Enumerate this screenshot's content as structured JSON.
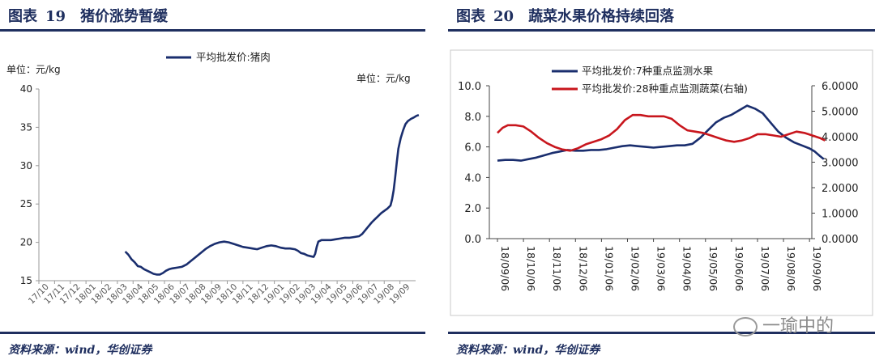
{
  "left": {
    "title_prefix": "图表",
    "title_num": "19",
    "title_text": "猪价涨势暂缓",
    "source": "资料来源：wind，华创证券"
  },
  "right": {
    "title_prefix": "图表",
    "title_num": "20",
    "title_text": "蔬菜水果价格持续回落",
    "source": "资料来源：wind，华创证券"
  },
  "watermark": "一瑜中的",
  "chart_data": [
    {
      "type": "line",
      "legend_position": "top",
      "unit_left": "单位：元/kg",
      "unit_right": "单位：元/kg",
      "ylim": [
        15,
        40
      ],
      "yticks": [
        "15",
        "20",
        "25",
        "30",
        "35",
        "40"
      ],
      "x_tick_labels": [
        "17/10",
        "17/11",
        "17/12",
        "18/01",
        "18/02",
        "18/03",
        "18/04",
        "18/05",
        "18/06",
        "18/07",
        "18/08",
        "18/09",
        "18/10",
        "18/11",
        "18/12",
        "19/01",
        "19/02",
        "19/03",
        "19/04",
        "19/05",
        "19/06",
        "19/07",
        "19/08",
        "19/09"
      ],
      "grid": false,
      "color": "#1a2e6e",
      "series": [
        {
          "name": "平均批发价:猪肉",
          "points": [
            [
              5.0,
              18.8
            ],
            [
              5.2,
              18.4
            ],
            [
              5.4,
              17.8
            ],
            [
              5.6,
              17.4
            ],
            [
              5.8,
              16.9
            ],
            [
              6.0,
              16.8
            ],
            [
              6.2,
              16.5
            ],
            [
              6.4,
              16.3
            ],
            [
              6.6,
              16.1
            ],
            [
              6.8,
              15.9
            ],
            [
              7.0,
              15.8
            ],
            [
              7.2,
              15.8
            ],
            [
              7.4,
              16.0
            ],
            [
              7.6,
              16.3
            ],
            [
              7.8,
              16.5
            ],
            [
              8.0,
              16.6
            ],
            [
              8.3,
              16.7
            ],
            [
              8.6,
              16.8
            ],
            [
              8.9,
              17.1
            ],
            [
              9.2,
              17.6
            ],
            [
              9.5,
              18.1
            ],
            [
              9.8,
              18.6
            ],
            [
              10.1,
              19.1
            ],
            [
              10.4,
              19.5
            ],
            [
              10.7,
              19.8
            ],
            [
              11.0,
              20.0
            ],
            [
              11.3,
              20.1
            ],
            [
              11.6,
              20.0
            ],
            [
              11.9,
              19.8
            ],
            [
              12.2,
              19.6
            ],
            [
              12.5,
              19.4
            ],
            [
              12.8,
              19.3
            ],
            [
              13.1,
              19.2
            ],
            [
              13.4,
              19.1
            ],
            [
              13.7,
              19.3
            ],
            [
              14.0,
              19.5
            ],
            [
              14.3,
              19.6
            ],
            [
              14.6,
              19.5
            ],
            [
              14.9,
              19.3
            ],
            [
              15.2,
              19.2
            ],
            [
              15.5,
              19.2
            ],
            [
              15.8,
              19.1
            ],
            [
              16.0,
              18.9
            ],
            [
              16.2,
              18.6
            ],
            [
              16.4,
              18.5
            ],
            [
              16.6,
              18.3
            ],
            [
              16.8,
              18.2
            ],
            [
              17.0,
              18.1
            ],
            [
              17.1,
              18.5
            ],
            [
              17.2,
              19.4
            ],
            [
              17.3,
              20.1
            ],
            [
              17.5,
              20.3
            ],
            [
              17.8,
              20.3
            ],
            [
              18.1,
              20.3
            ],
            [
              18.4,
              20.4
            ],
            [
              18.7,
              20.5
            ],
            [
              19.0,
              20.6
            ],
            [
              19.3,
              20.6
            ],
            [
              19.6,
              20.7
            ],
            [
              19.9,
              20.8
            ],
            [
              20.1,
              21.1
            ],
            [
              20.3,
              21.6
            ],
            [
              20.5,
              22.1
            ],
            [
              20.7,
              22.6
            ],
            [
              20.9,
              23.0
            ],
            [
              21.1,
              23.4
            ],
            [
              21.3,
              23.8
            ],
            [
              21.5,
              24.1
            ],
            [
              21.7,
              24.4
            ],
            [
              21.9,
              24.8
            ],
            [
              22.0,
              25.6
            ],
            [
              22.1,
              26.8
            ],
            [
              22.2,
              28.5
            ],
            [
              22.3,
              30.5
            ],
            [
              22.4,
              32.2
            ],
            [
              22.55,
              33.6
            ],
            [
              22.7,
              34.6
            ],
            [
              22.85,
              35.4
            ],
            [
              23.0,
              35.8
            ],
            [
              23.2,
              36.1
            ],
            [
              23.4,
              36.3
            ],
            [
              23.55,
              36.5
            ],
            [
              23.7,
              36.6
            ]
          ]
        }
      ]
    },
    {
      "type": "line",
      "legend_position": "top-left",
      "ylim": [
        0,
        10
      ],
      "yticks": [
        "0.0",
        "2.0",
        "4.0",
        "6.0",
        "8.0",
        "10.0"
      ],
      "y2lim": [
        0,
        6
      ],
      "y2ticks": [
        "0.0000",
        "1.0000",
        "2.0000",
        "3.0000",
        "4.0000",
        "5.0000",
        "6.0000"
      ],
      "x_tick_labels": [
        "18/09/06",
        "18/10/06",
        "18/11/06",
        "18/12/06",
        "19/01/06",
        "19/02/06",
        "19/03/06",
        "19/04/06",
        "19/05/06",
        "19/06/06",
        "19/07/06",
        "19/08/06",
        "19/09/06"
      ],
      "grid": false,
      "series": [
        {
          "name": "平均批发价:7种重点监测水果",
          "axis": "left",
          "color": "#1a2e6e",
          "points": [
            [
              0,
              5.1
            ],
            [
              0.3,
              5.15
            ],
            [
              0.6,
              5.15
            ],
            [
              0.9,
              5.1
            ],
            [
              1.2,
              5.2
            ],
            [
              1.5,
              5.3
            ],
            [
              1.8,
              5.45
            ],
            [
              2.1,
              5.6
            ],
            [
              2.4,
              5.7
            ],
            [
              2.7,
              5.8
            ],
            [
              3.0,
              5.75
            ],
            [
              3.3,
              5.75
            ],
            [
              3.6,
              5.8
            ],
            [
              3.9,
              5.8
            ],
            [
              4.2,
              5.85
            ],
            [
              4.5,
              5.95
            ],
            [
              4.8,
              6.05
            ],
            [
              5.1,
              6.1
            ],
            [
              5.4,
              6.05
            ],
            [
              5.7,
              6.0
            ],
            [
              6.0,
              5.95
            ],
            [
              6.3,
              6.0
            ],
            [
              6.6,
              6.05
            ],
            [
              6.9,
              6.1
            ],
            [
              7.2,
              6.1
            ],
            [
              7.5,
              6.2
            ],
            [
              7.8,
              6.6
            ],
            [
              8.1,
              7.1
            ],
            [
              8.4,
              7.6
            ],
            [
              8.7,
              7.9
            ],
            [
              9.0,
              8.1
            ],
            [
              9.3,
              8.4
            ],
            [
              9.6,
              8.7
            ],
            [
              9.9,
              8.5
            ],
            [
              10.2,
              8.2
            ],
            [
              10.5,
              7.6
            ],
            [
              10.8,
              7.0
            ],
            [
              11.1,
              6.6
            ],
            [
              11.4,
              6.3
            ],
            [
              11.7,
              6.1
            ],
            [
              12.0,
              5.9
            ],
            [
              12.2,
              5.7
            ],
            [
              12.4,
              5.4
            ],
            [
              12.55,
              5.2
            ]
          ]
        },
        {
          "name": "平均批发价:28种重点监测蔬菜(右轴)",
          "axis": "right",
          "color": "#c8161d",
          "points": [
            [
              0,
              4.15
            ],
            [
              0.2,
              4.35
            ],
            [
              0.4,
              4.45
            ],
            [
              0.7,
              4.45
            ],
            [
              1.0,
              4.4
            ],
            [
              1.3,
              4.2
            ],
            [
              1.6,
              3.95
            ],
            [
              1.9,
              3.75
            ],
            [
              2.2,
              3.6
            ],
            [
              2.5,
              3.5
            ],
            [
              2.8,
              3.45
            ],
            [
              3.1,
              3.55
            ],
            [
              3.4,
              3.7
            ],
            [
              3.7,
              3.8
            ],
            [
              4.0,
              3.9
            ],
            [
              4.3,
              4.05
            ],
            [
              4.6,
              4.3
            ],
            [
              4.9,
              4.65
            ],
            [
              5.2,
              4.85
            ],
            [
              5.5,
              4.85
            ],
            [
              5.8,
              4.8
            ],
            [
              6.1,
              4.8
            ],
            [
              6.4,
              4.8
            ],
            [
              6.7,
              4.7
            ],
            [
              7.0,
              4.45
            ],
            [
              7.3,
              4.25
            ],
            [
              7.6,
              4.2
            ],
            [
              7.9,
              4.15
            ],
            [
              8.2,
              4.05
            ],
            [
              8.5,
              3.95
            ],
            [
              8.8,
              3.85
            ],
            [
              9.1,
              3.8
            ],
            [
              9.4,
              3.85
            ],
            [
              9.7,
              3.95
            ],
            [
              10.0,
              4.1
            ],
            [
              10.3,
              4.1
            ],
            [
              10.6,
              4.05
            ],
            [
              10.9,
              4.0
            ],
            [
              11.2,
              4.1
            ],
            [
              11.5,
              4.2
            ],
            [
              11.8,
              4.15
            ],
            [
              12.1,
              4.05
            ],
            [
              12.4,
              3.95
            ],
            [
              12.6,
              3.85
            ]
          ]
        }
      ]
    }
  ]
}
